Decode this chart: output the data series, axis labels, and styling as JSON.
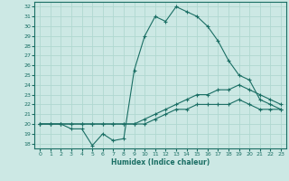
{
  "xlabel": "Humidex (Indice chaleur)",
  "background_color": "#cce8e4",
  "grid_color": "#b0d8d0",
  "line_color": "#1a6e64",
  "xlim": [
    -0.5,
    23.5
  ],
  "ylim": [
    17.5,
    32.5
  ],
  "yticks": [
    18,
    19,
    20,
    21,
    22,
    23,
    24,
    25,
    26,
    27,
    28,
    29,
    30,
    31,
    32
  ],
  "xticks": [
    0,
    1,
    2,
    3,
    4,
    5,
    6,
    7,
    8,
    9,
    10,
    11,
    12,
    13,
    14,
    15,
    16,
    17,
    18,
    19,
    20,
    21,
    22,
    23
  ],
  "line1": {
    "x": [
      0,
      1,
      2,
      3,
      4,
      5,
      6,
      7,
      8,
      9,
      10,
      11,
      12,
      13,
      14,
      15,
      16,
      17,
      18,
      19,
      20,
      21,
      22,
      23
    ],
    "y": [
      20,
      20,
      20,
      19.5,
      19.5,
      17.8,
      19,
      18.3,
      18.5,
      25.5,
      29,
      31,
      30.5,
      32,
      31.5,
      31,
      30,
      28.5,
      26.5,
      25,
      24.5,
      22.5,
      22,
      21.5
    ]
  },
  "line2": {
    "x": [
      0,
      1,
      2,
      3,
      4,
      5,
      6,
      7,
      8,
      9,
      10,
      11,
      12,
      13,
      14,
      15,
      16,
      17,
      18,
      19,
      20,
      21,
      22,
      23
    ],
    "y": [
      20,
      20,
      20,
      20,
      20,
      20,
      20,
      20,
      20,
      20,
      20.5,
      21,
      21.5,
      22,
      22.5,
      23,
      23,
      23.5,
      23.5,
      24,
      23.5,
      23,
      22.5,
      22
    ]
  },
  "line3": {
    "x": [
      0,
      1,
      2,
      3,
      4,
      5,
      6,
      7,
      8,
      9,
      10,
      11,
      12,
      13,
      14,
      15,
      16,
      17,
      18,
      19,
      20,
      21,
      22,
      23
    ],
    "y": [
      20,
      20,
      20,
      20,
      20,
      20,
      20,
      20,
      20,
      20,
      20,
      20.5,
      21,
      21.5,
      21.5,
      22,
      22,
      22,
      22,
      22.5,
      22,
      21.5,
      21.5,
      21.5
    ]
  }
}
